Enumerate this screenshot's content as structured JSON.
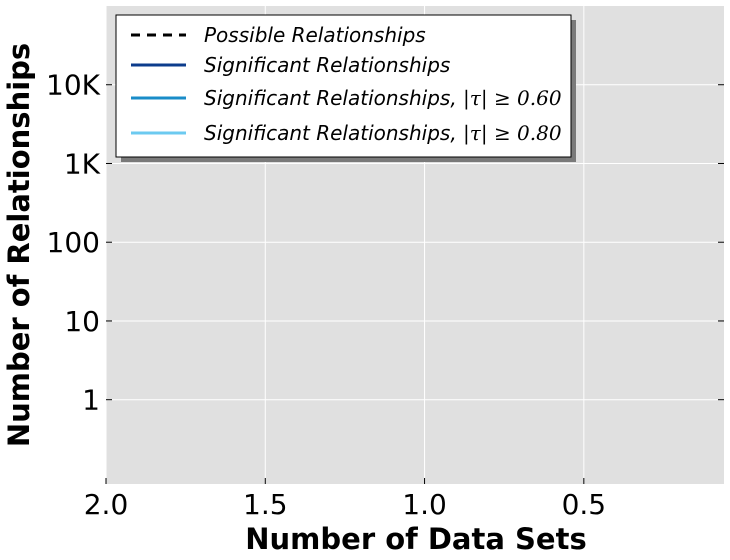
{
  "chart_data": {
    "type": "line",
    "title": "",
    "xlabel": "Number of Data Sets",
    "ylabel": "Number of Relationships",
    "x_ticks": [
      {
        "value": 2.0,
        "label": "2.0"
      },
      {
        "value": 1.5,
        "label": "1.5"
      },
      {
        "value": 1.0,
        "label": "1.0"
      },
      {
        "value": 0.5,
        "label": "0.5"
      }
    ],
    "y_ticks": [
      {
        "value": 1,
        "label": "1"
      },
      {
        "value": 10,
        "label": "10"
      },
      {
        "value": 100,
        "label": "100"
      },
      {
        "value": 1000,
        "label": "1K"
      },
      {
        "value": 10000,
        "label": "10K"
      }
    ],
    "xlim": [
      2.0,
      0.06
    ],
    "ylim": [
      0.085,
      100000
    ],
    "x_reversed": true,
    "y_scale": "log",
    "grid": true,
    "background_color": "#e0e0e0",
    "grid_color": "#ffffff",
    "legend_position": "top-left",
    "series": [
      {
        "name": "Possible Relationships",
        "name_math": "",
        "color": "#000000",
        "dash": "dashed",
        "x": [],
        "y": []
      },
      {
        "name": "Significant Relationships",
        "name_math": "",
        "color": "#0c3c8c",
        "dash": "solid",
        "x": [],
        "y": []
      },
      {
        "name": "Significant Relationships, ",
        "name_math": "|τ| ≥ 0.60",
        "color": "#1a8cc8",
        "dash": "solid",
        "x": [],
        "y": []
      },
      {
        "name": "Significant Relationships, ",
        "name_math": "|τ| ≥ 0.80",
        "color": "#6ccaf0",
        "dash": "solid",
        "x": [],
        "y": []
      }
    ]
  }
}
